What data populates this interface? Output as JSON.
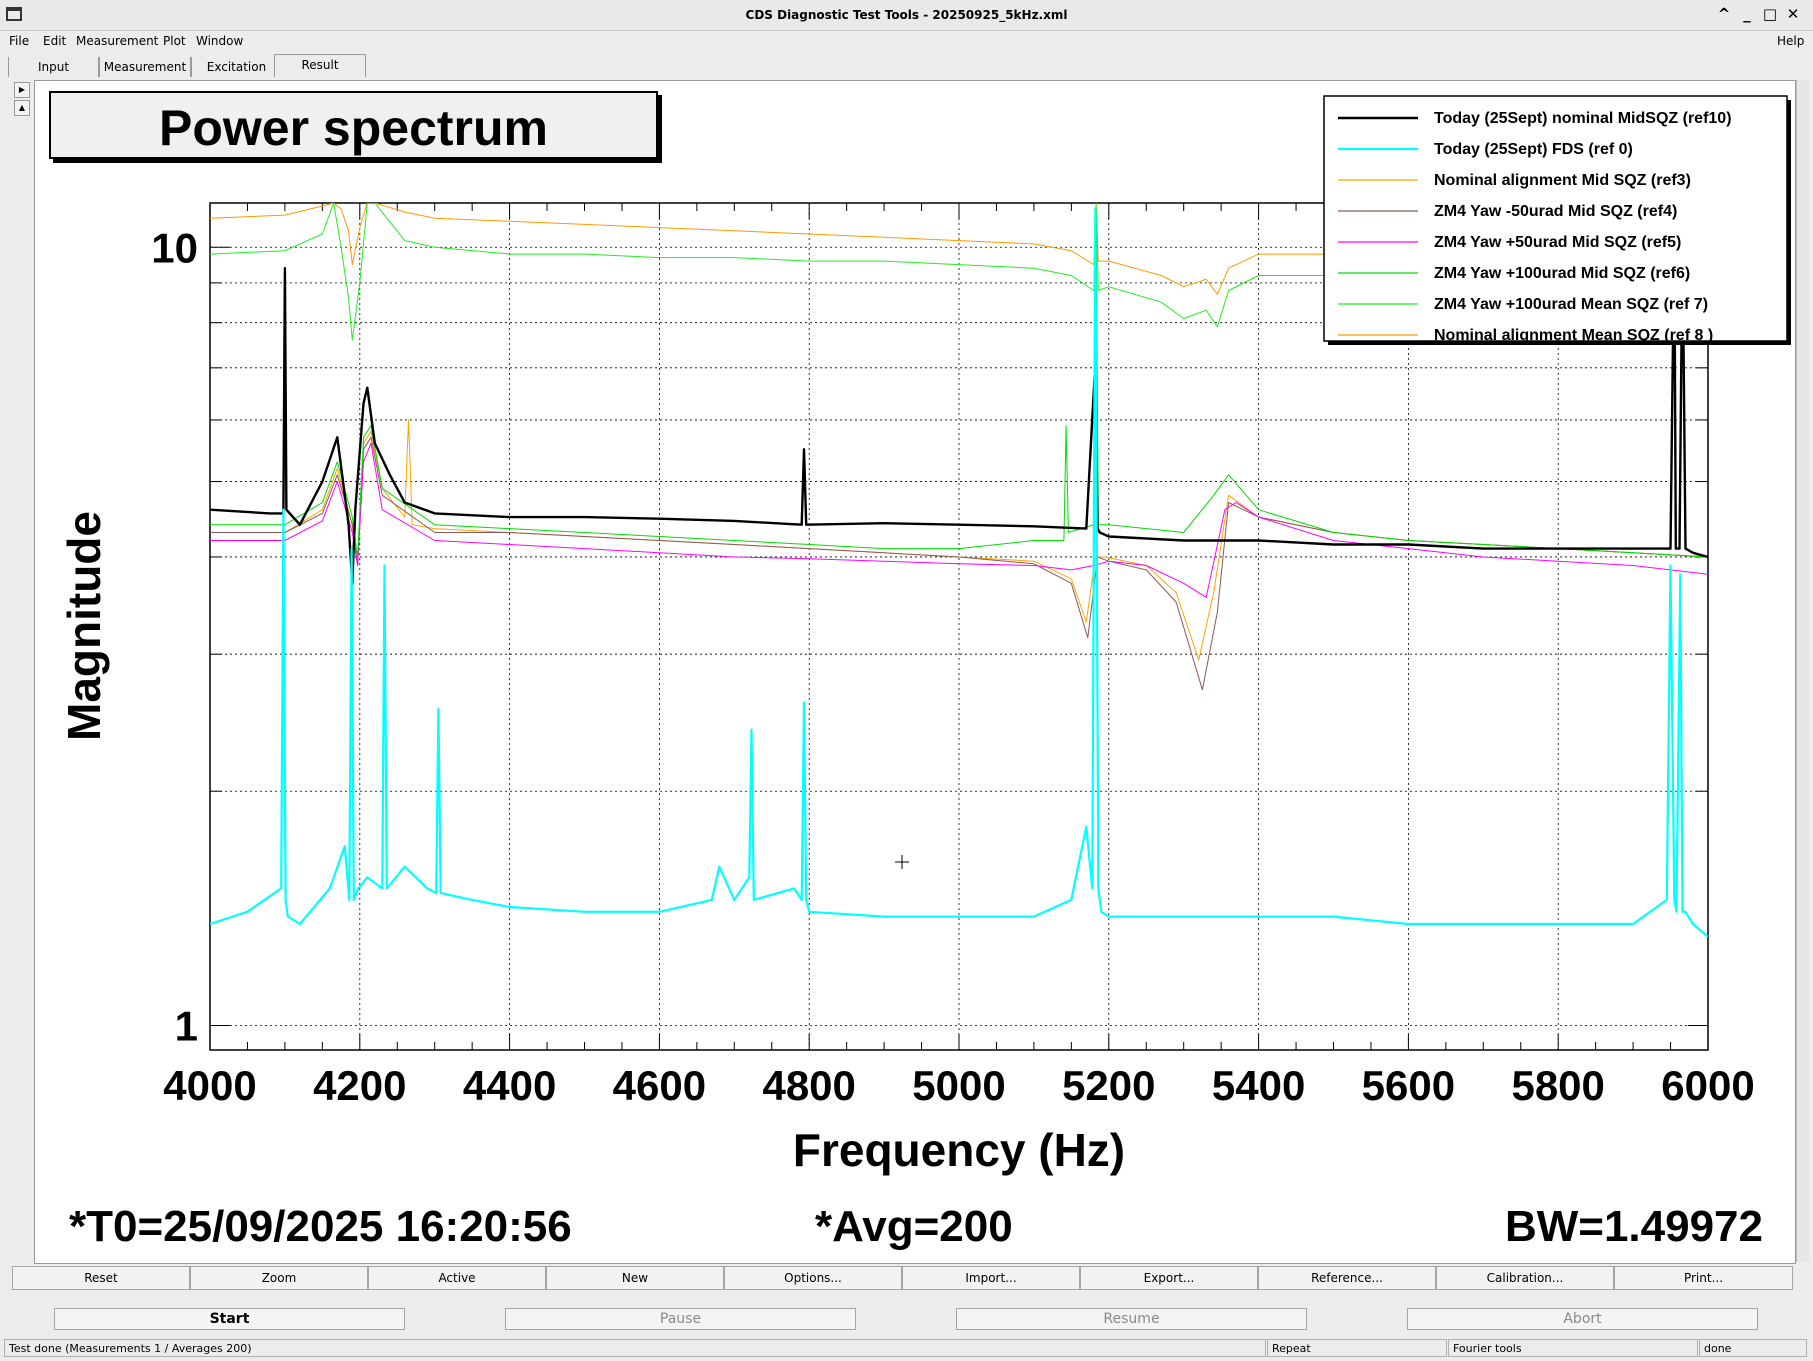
{
  "window": {
    "title": "CDS Diagnostic Test Tools - 20250925_5kHz.xml",
    "buttons": [
      "^",
      "_",
      "□",
      "✕"
    ]
  },
  "menu": {
    "left": [
      "File",
      "Edit",
      "Measurement",
      "Plot",
      "Window"
    ],
    "right": "Help"
  },
  "tabs": [
    "Input",
    "Measurement",
    "Excitation",
    "Result"
  ],
  "active_tab": "Result",
  "toolbar": [
    "Reset",
    "Zoom",
    "Active",
    "New",
    "Options...",
    "Import...",
    "Export...",
    "Reference...",
    "Calibration...",
    "Print..."
  ],
  "controls": {
    "start": "Start",
    "pause": "Pause",
    "resume": "Resume",
    "abort": "Abort"
  },
  "status": {
    "message": "Test done (Measurements 1 / Averages 200)",
    "repeat": "Repeat",
    "tool": "Fourier tools",
    "state": "done"
  },
  "footer": {
    "t0": "*T0=25/09/2025 16:20:56",
    "avg": "*Avg=200",
    "bw": "BW=1.49972"
  },
  "chart_data": {
    "type": "line",
    "title": "Power spectrum",
    "xlabel": "Frequency (Hz)",
    "ylabel": "Magnitude",
    "xlim": [
      4000,
      6000
    ],
    "ylim": [
      0.93,
      11.4
    ],
    "yscale": "log",
    "x_ticks": [
      4000,
      4200,
      4400,
      4600,
      4800,
      5000,
      5200,
      5400,
      5600,
      5800,
      6000
    ],
    "x_tick_labels": [
      "4000",
      "4200",
      "4400",
      "4600",
      "4800",
      "5000",
      "5200",
      "5400",
      "5600",
      "5800",
      "6000"
    ],
    "y_tick_labels": [
      {
        "value": 1,
        "label": "1"
      },
      {
        "value": 10,
        "label": "10"
      }
    ],
    "grid": true,
    "legend_position": "top-right",
    "series": [
      {
        "name": "Today (25Sept) nominal MidSQZ (ref10)",
        "color": "#000000",
        "lw": 2.4,
        "x": [
          4000,
          4080,
          4098,
          4100,
          4102,
          4120,
          4150,
          4170,
          4185,
          4190,
          4194,
          4205,
          4210,
          4220,
          4240,
          4260,
          4300,
          4400,
          4500,
          4600,
          4700,
          4790,
          4793,
          4796,
          4900,
          5000,
          5100,
          5170,
          5182,
          5185,
          5188,
          5200,
          5300,
          5400,
          5500,
          5600,
          5700,
          5800,
          5900,
          5950,
          5955,
          5957,
          5962,
          5966,
          5970,
          5980,
          6000
        ],
        "y": [
          4.6,
          4.55,
          4.55,
          9.4,
          4.6,
          4.4,
          5.0,
          5.7,
          4.4,
          3.7,
          4.6,
          6.3,
          6.6,
          5.6,
          5.1,
          4.7,
          4.55,
          4.5,
          4.5,
          4.48,
          4.45,
          4.4,
          5.5,
          4.4,
          4.42,
          4.4,
          4.38,
          4.35,
          7.1,
          4.35,
          4.3,
          4.25,
          4.2,
          4.2,
          4.15,
          4.15,
          4.1,
          4.1,
          4.1,
          4.1,
          10.5,
          4.1,
          4.1,
          10.3,
          4.1,
          4.05,
          4.0
        ]
      },
      {
        "name": "Today (25Sept) FDS (ref 0)",
        "color": "#00ffff",
        "lw": 2.2,
        "x": [
          4000,
          4050,
          4095,
          4098,
          4101,
          4104,
          4120,
          4160,
          4180,
          4186,
          4189,
          4192,
          4198,
          4210,
          4230,
          4233,
          4236,
          4260,
          4290,
          4302,
          4305,
          4308,
          4350,
          4400,
          4500,
          4600,
          4670,
          4680,
          4700,
          4720,
          4723,
          4726,
          4780,
          4790,
          4793,
          4796,
          4800,
          4900,
          5000,
          5100,
          5150,
          5170,
          5178,
          5182,
          5186,
          5190,
          5200,
          5300,
          5400,
          5500,
          5600,
          5700,
          5800,
          5900,
          5945,
          5950,
          5955,
          5958,
          5963,
          5966,
          5970,
          5980,
          6000
        ],
        "y": [
          1.35,
          1.4,
          1.5,
          4.6,
          1.45,
          1.38,
          1.35,
          1.5,
          1.7,
          1.45,
          4.1,
          1.45,
          1.5,
          1.55,
          1.5,
          3.9,
          1.5,
          1.6,
          1.5,
          1.48,
          2.55,
          1.48,
          1.45,
          1.42,
          1.4,
          1.4,
          1.45,
          1.6,
          1.45,
          1.55,
          2.4,
          1.45,
          1.5,
          1.45,
          2.6,
          1.45,
          1.4,
          1.38,
          1.38,
          1.38,
          1.45,
          1.8,
          1.5,
          11.2,
          1.5,
          1.4,
          1.38,
          1.38,
          1.38,
          1.38,
          1.35,
          1.35,
          1.35,
          1.35,
          1.45,
          3.9,
          1.45,
          1.4,
          3.8,
          1.4,
          1.4,
          1.35,
          1.3
        ]
      },
      {
        "name": "Nominal alignment Mid SQZ (ref3)",
        "color": "#ffa500",
        "lw": 1.0,
        "x": [
          4000,
          4100,
          4150,
          4170,
          4190,
          4197,
          4205,
          4215,
          4230,
          4260,
          4265,
          4270,
          4300,
          4400,
          4500,
          4600,
          4700,
          4800,
          4900,
          5000,
          5100,
          5150,
          5170,
          5182,
          5195,
          5250,
          5290,
          5320,
          5340,
          5360,
          5400,
          5500,
          5600,
          5700,
          5800,
          5900,
          6000
        ],
        "y": [
          4.3,
          4.3,
          4.6,
          5.2,
          4.4,
          3.9,
          5.6,
          5.8,
          4.9,
          4.5,
          6.0,
          4.4,
          4.35,
          4.3,
          4.25,
          4.2,
          4.15,
          4.1,
          4.05,
          4.0,
          3.95,
          3.75,
          3.3,
          4.0,
          4.0,
          3.9,
          3.6,
          2.95,
          3.6,
          4.8,
          4.5,
          4.3,
          4.2,
          4.15,
          4.1,
          4.05,
          4.0
        ]
      },
      {
        "name": "ZM4 Yaw -50urad Mid SQZ (ref4)",
        "color": "#8b5a5a",
        "lw": 1.0,
        "x": [
          4000,
          4100,
          4150,
          4170,
          4190,
          4197,
          4205,
          4215,
          4230,
          4300,
          4400,
          4500,
          4600,
          4700,
          4800,
          4900,
          5000,
          5100,
          5150,
          5172,
          5185,
          5200,
          5250,
          5290,
          5325,
          5345,
          5360,
          5400,
          5500,
          5600,
          5700,
          5800,
          5900,
          6000
        ],
        "y": [
          4.3,
          4.3,
          4.55,
          5.1,
          4.4,
          3.9,
          5.5,
          5.7,
          4.8,
          4.3,
          4.3,
          4.25,
          4.2,
          4.15,
          4.1,
          4.05,
          4.0,
          3.92,
          3.7,
          3.15,
          4.0,
          3.95,
          3.85,
          3.5,
          2.7,
          3.4,
          4.7,
          4.5,
          4.3,
          4.2,
          4.15,
          4.1,
          4.05,
          4.0
        ]
      },
      {
        "name": "ZM4 Yaw +50urad Mid SQZ (ref5)",
        "color": "#ff00ff",
        "lw": 1.0,
        "x": [
          4000,
          4100,
          4150,
          4170,
          4190,
          4197,
          4205,
          4215,
          4230,
          4300,
          4400,
          4500,
          4600,
          4700,
          4800,
          4900,
          5000,
          5100,
          5150,
          5180,
          5200,
          5250,
          5300,
          5330,
          5355,
          5370,
          5400,
          5500,
          5600,
          5700,
          5800,
          5900,
          6000
        ],
        "y": [
          4.2,
          4.2,
          4.45,
          5.0,
          4.3,
          3.9,
          5.3,
          5.6,
          4.6,
          4.2,
          4.15,
          4.1,
          4.05,
          4.0,
          3.98,
          3.95,
          3.92,
          3.9,
          3.85,
          3.9,
          3.95,
          3.9,
          3.7,
          3.55,
          4.6,
          4.7,
          4.5,
          4.2,
          4.1,
          4.0,
          3.95,
          3.9,
          3.8
        ]
      },
      {
        "name": "ZM4 Yaw +100urad Mid SQZ (ref6)",
        "color": "#00dd00",
        "lw": 1.0,
        "x": [
          4000,
          4100,
          4150,
          4170,
          4190,
          4197,
          4205,
          4215,
          4230,
          4300,
          4400,
          4500,
          4600,
          4700,
          4800,
          4900,
          5000,
          5100,
          5140,
          5143,
          5146,
          5180,
          5183,
          5186,
          5200,
          5300,
          5340,
          5360,
          5400,
          5500,
          5600,
          5700,
          5800,
          5900,
          6000
        ],
        "y": [
          4.4,
          4.4,
          4.7,
          5.3,
          4.5,
          4.0,
          5.7,
          5.9,
          4.9,
          4.4,
          4.35,
          4.3,
          4.25,
          4.2,
          4.15,
          4.1,
          4.1,
          4.2,
          4.2,
          5.9,
          4.3,
          4.4,
          11.0,
          4.4,
          4.4,
          4.3,
          4.8,
          5.1,
          4.6,
          4.3,
          4.2,
          4.15,
          4.1,
          4.05,
          4.0
        ]
      },
      {
        "name": "ZM4 Yaw +100urad Mean SQZ (ref 7)",
        "color": "#22ee22",
        "lw": 1.0,
        "x": [
          4000,
          4100,
          4150,
          4165,
          4175,
          4185,
          4190,
          4200,
          4210,
          4220,
          4260,
          4300,
          4400,
          4500,
          4600,
          4700,
          4800,
          4900,
          5000,
          5100,
          5150,
          5180,
          5183,
          5186,
          5200,
          5270,
          5300,
          5330,
          5345,
          5360,
          5400,
          5500,
          5600,
          5700,
          5800,
          5900,
          6000
        ],
        "y": [
          9.8,
          9.9,
          10.4,
          11.4,
          10.0,
          8.6,
          7.6,
          9.0,
          11.4,
          11.4,
          10.2,
          10.0,
          9.8,
          9.8,
          9.7,
          9.7,
          9.6,
          9.6,
          9.5,
          9.4,
          9.2,
          8.8,
          11.4,
          8.8,
          8.9,
          8.5,
          8.1,
          8.3,
          7.9,
          8.8,
          9.2,
          9.2,
          9.1,
          9.1,
          9.0,
          9.0,
          8.9
        ]
      },
      {
        "name": "Nominal alignment Mean SQZ (ref 8 )",
        "color": "#ff9900",
        "lw": 1.0,
        "x": [
          4000,
          4100,
          4150,
          4165,
          4175,
          4185,
          4190,
          4200,
          4210,
          4220,
          4260,
          4300,
          4400,
          4500,
          4600,
          4700,
          4800,
          4900,
          5000,
          5100,
          5150,
          5180,
          5183,
          5186,
          5200,
          5270,
          5300,
          5330,
          5345,
          5360,
          5400,
          5500,
          5600,
          5700,
          5800,
          5900,
          6000
        ],
        "y": [
          10.9,
          11.0,
          11.3,
          11.4,
          11.2,
          10.5,
          9.5,
          10.6,
          11.4,
          11.4,
          11.1,
          10.9,
          10.8,
          10.7,
          10.6,
          10.5,
          10.4,
          10.3,
          10.2,
          10.1,
          9.9,
          9.5,
          11.4,
          9.6,
          9.6,
          9.2,
          8.9,
          9.1,
          8.7,
          9.4,
          9.8,
          9.8,
          9.7,
          9.7,
          9.6,
          9.6,
          9.5
        ]
      }
    ]
  }
}
